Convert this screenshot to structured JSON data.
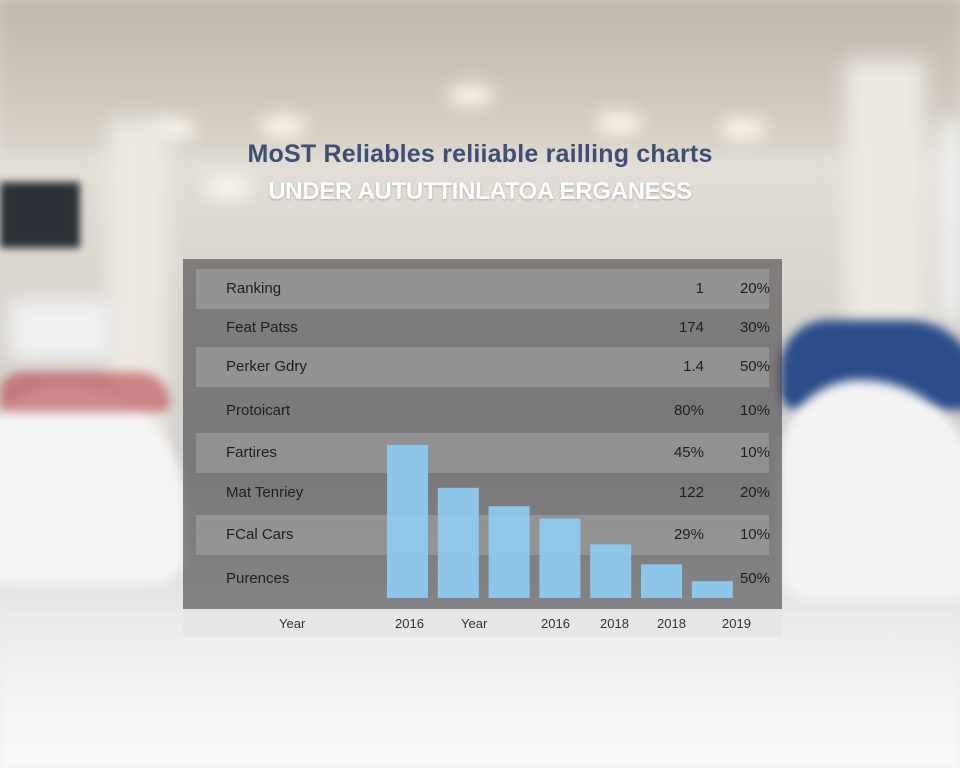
{
  "title": "MoST Reliables reliiable railling charts",
  "subtitle": "UNDER AUTUTTINLATOA ERGANESS",
  "colors": {
    "bar": "#8ec9ee",
    "panel": "#4a4a4c",
    "title": "#3d4f72"
  },
  "table": {
    "rows": [
      {
        "label": "Ranking",
        "v1": "1",
        "v2": "20%"
      },
      {
        "label": "Feat Patss",
        "v1": "174",
        "v2": "30%"
      },
      {
        "label": "Perker Gdry",
        "v1": "1.4",
        "v2": "50%"
      },
      {
        "label": "Protoicart",
        "v1": "80%",
        "v2": "10%"
      },
      {
        "label": "Fartires",
        "v1": "45%",
        "v2": "10%"
      },
      {
        "label": "Mat Tenriey",
        "v1": "122",
        "v2": "20%"
      },
      {
        "label": "FCal Cars",
        "v1": "29%",
        "v2": "10%"
      },
      {
        "label": "Purences",
        "v1": "",
        "v2": "50%"
      }
    ]
  },
  "chart_data": {
    "type": "bar",
    "x_tick_labels": [
      "Year",
      "2016",
      "Year",
      "2016",
      "2018",
      "2018",
      "2019"
    ],
    "values": [
      100,
      72,
      60,
      52,
      35,
      22,
      11
    ],
    "ylim": [
      0,
      110
    ],
    "grid": false,
    "legend": "none"
  }
}
